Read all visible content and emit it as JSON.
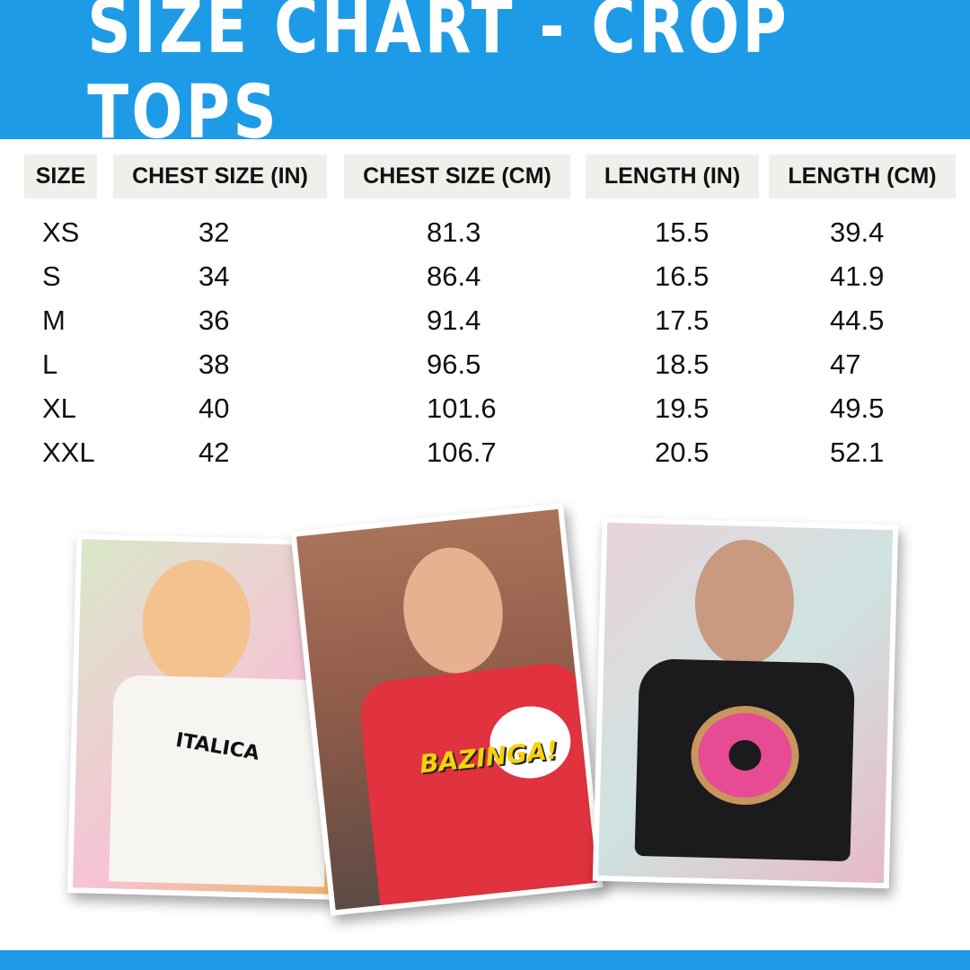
{
  "title": "SIZE CHART - CROP TOPS",
  "colors": {
    "brand": "#1e9be6",
    "header_cell": "#f0efeb"
  },
  "table": {
    "headers": [
      "SIZE",
      "CHEST SIZE (IN)",
      "CHEST SIZE (CM)",
      "LENGTH (IN)",
      "LENGTH (CM)"
    ],
    "rows": [
      [
        "XS",
        "32",
        "81.3",
        "15.5",
        "39.4"
      ],
      [
        "S",
        "34",
        "86.4",
        "16.5",
        "41.9"
      ],
      [
        "M",
        "36",
        "91.4",
        "17.5",
        "44.5"
      ],
      [
        "L",
        "38",
        "96.5",
        "18.5",
        "47"
      ],
      [
        "XL",
        "40",
        "101.6",
        "19.5",
        "49.5"
      ],
      [
        "XXL",
        "42",
        "106.7",
        "20.5",
        "52.1"
      ]
    ]
  },
  "photos": [
    {
      "shirt_text": "ITALICA",
      "shirt_color": "#f7f5f2"
    },
    {
      "shirt_text": "BAZINGA!",
      "shirt_color": "#e0323f"
    },
    {
      "shirt_text": "",
      "shirt_color": "#1b1a1c"
    }
  ]
}
